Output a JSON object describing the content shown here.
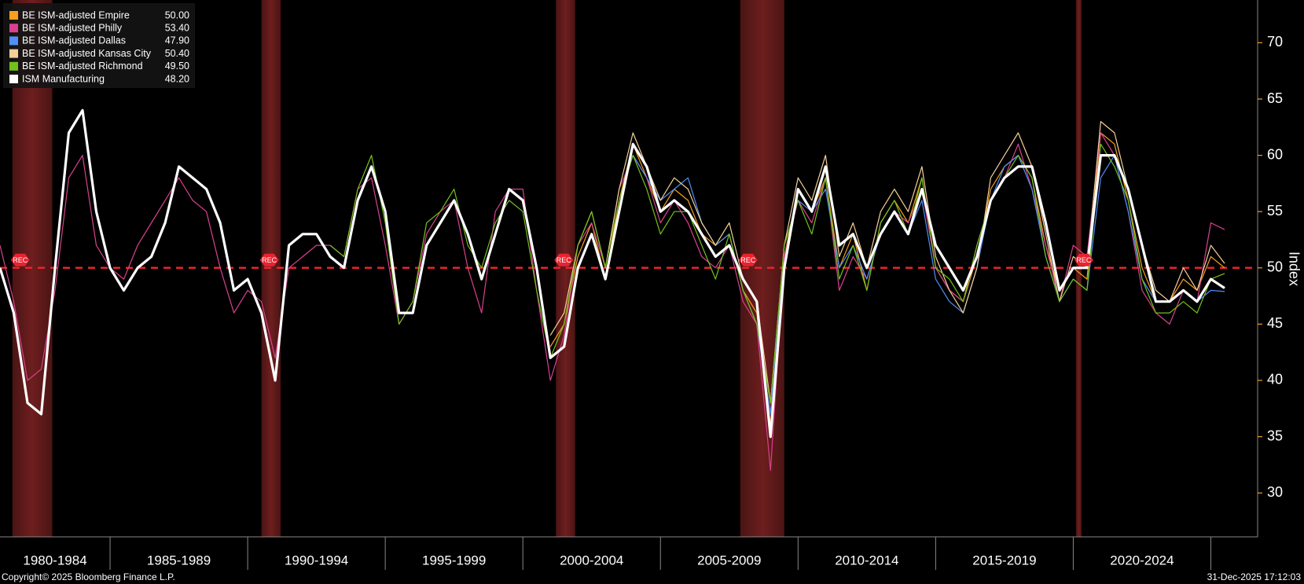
{
  "chart_data": {
    "type": "line",
    "axis_label": "Index",
    "annotation": "REC",
    "footer_left": "Copyright© 2025 Bloomberg Finance L.P.",
    "footer_right": "31-Dec-2025 17:12:03",
    "x": [
      1981,
      1981.5,
      1982,
      1982.5,
      1983,
      1983.5,
      1984,
      1984.5,
      1985,
      1985.5,
      1986,
      1986.5,
      1987,
      1987.5,
      1988,
      1988.5,
      1989,
      1989.5,
      1990,
      1990.5,
      1991,
      1991.5,
      1992,
      1992.5,
      1993,
      1993.5,
      1994,
      1994.5,
      1995,
      1995.5,
      1996,
      1996.5,
      1997,
      1997.5,
      1998,
      1998.5,
      1999,
      1999.5,
      2000,
      2000.5,
      2001,
      2001.5,
      2002,
      2002.5,
      2003,
      2003.5,
      2004,
      2004.5,
      2005,
      2005.5,
      2006,
      2006.5,
      2007,
      2007.5,
      2008,
      2008.5,
      2009,
      2009.5,
      2010,
      2010.5,
      2011,
      2011.5,
      2012,
      2012.5,
      2013,
      2013.5,
      2014,
      2014.5,
      2015,
      2015.5,
      2016,
      2016.5,
      2017,
      2017.5,
      2018,
      2018.5,
      2019,
      2019.5,
      2020,
      2020.5,
      2021,
      2021.5,
      2022,
      2022.5,
      2023,
      2023.5,
      2024,
      2024.5,
      2025,
      2025.5
    ],
    "series": [
      {
        "name": "BE ISM-adjusted Empire",
        "color": "#f7a01d",
        "last_label": "50.00",
        "values": [
          null,
          null,
          null,
          null,
          null,
          null,
          null,
          null,
          null,
          null,
          null,
          null,
          null,
          null,
          null,
          null,
          null,
          null,
          null,
          null,
          null,
          null,
          null,
          null,
          null,
          null,
          null,
          null,
          null,
          null,
          null,
          null,
          null,
          null,
          null,
          null,
          null,
          null,
          null,
          null,
          43,
          45,
          51,
          54,
          49,
          56,
          61,
          58,
          55,
          57,
          56,
          53,
          52,
          53,
          48,
          46,
          36,
          51,
          57,
          55,
          58,
          50,
          53,
          48,
          54,
          56,
          54,
          58,
          50,
          48,
          47,
          51,
          57,
          59,
          60,
          58,
          52,
          48,
          50,
          49,
          62,
          61,
          56,
          50,
          47,
          47,
          49,
          48,
          51,
          50
        ]
      },
      {
        "name": "BE ISM-adjusted Philly",
        "color": "#d9418f",
        "last_label": "53.40",
        "values": [
          52,
          47,
          40,
          41,
          48,
          58,
          60,
          52,
          50,
          49,
          52,
          54,
          56,
          58,
          56,
          55,
          50,
          46,
          48,
          47,
          42,
          50,
          51,
          52,
          52,
          51,
          57,
          58,
          52,
          45,
          47,
          53,
          55,
          56,
          50,
          46,
          55,
          57,
          57,
          48,
          40,
          44,
          52,
          54,
          50,
          57,
          60,
          58,
          54,
          56,
          54,
          51,
          50,
          52,
          47,
          45,
          32,
          51,
          56,
          54,
          58,
          48,
          51,
          49,
          53,
          55,
          54,
          57,
          50,
          48,
          47,
          52,
          56,
          58,
          61,
          57,
          52,
          47,
          52,
          51,
          62,
          60,
          55,
          48,
          46,
          45,
          48,
          47,
          54,
          53.4
        ]
      },
      {
        "name": "BE ISM-adjusted Dallas",
        "color": "#4f8ff7",
        "last_label": "47.90",
        "values": [
          null,
          null,
          null,
          null,
          null,
          null,
          null,
          null,
          null,
          null,
          null,
          null,
          null,
          null,
          null,
          null,
          null,
          null,
          null,
          null,
          null,
          null,
          null,
          null,
          null,
          null,
          null,
          null,
          null,
          null,
          null,
          null,
          null,
          null,
          null,
          null,
          null,
          null,
          null,
          null,
          null,
          null,
          null,
          null,
          null,
          null,
          60,
          58,
          56,
          57,
          58,
          54,
          52,
          53,
          48,
          45,
          37,
          52,
          56,
          55,
          57,
          50,
          52,
          49,
          53,
          55,
          53,
          56,
          49,
          47,
          46,
          50,
          56,
          59,
          60,
          57,
          51,
          47,
          49,
          48,
          58,
          60,
          55,
          49,
          47,
          47,
          48,
          47,
          48,
          47.9
        ]
      },
      {
        "name": "BE ISM-adjusted Kansas City",
        "color": "#f5d09a",
        "last_label": "50.40",
        "values": [
          null,
          null,
          null,
          null,
          null,
          null,
          null,
          null,
          null,
          null,
          null,
          null,
          null,
          null,
          null,
          null,
          null,
          null,
          null,
          null,
          null,
          null,
          null,
          null,
          null,
          null,
          null,
          null,
          null,
          null,
          null,
          null,
          null,
          null,
          null,
          null,
          null,
          null,
          null,
          null,
          44,
          46,
          52,
          55,
          50,
          57,
          62,
          59,
          56,
          58,
          57,
          54,
          52,
          54,
          49,
          47,
          38,
          52,
          58,
          56,
          60,
          51,
          54,
          50,
          55,
          57,
          55,
          59,
          51,
          48,
          46,
          50,
          58,
          60,
          62,
          59,
          53,
          47,
          51,
          50,
          63,
          62,
          57,
          52,
          48,
          47,
          50,
          48,
          52,
          50.4
        ]
      },
      {
        "name": "BE ISM-adjusted Richmond",
        "color": "#73c11c",
        "last_label": "49.50",
        "values": [
          null,
          null,
          null,
          null,
          null,
          null,
          null,
          null,
          null,
          null,
          null,
          null,
          null,
          null,
          null,
          null,
          null,
          null,
          null,
          null,
          null,
          null,
          null,
          null,
          52,
          51,
          57,
          60,
          54,
          45,
          47,
          54,
          55,
          57,
          52,
          50,
          54,
          56,
          55,
          48,
          42,
          45,
          52,
          55,
          50,
          56,
          60,
          57,
          53,
          55,
          55,
          52,
          49,
          53,
          48,
          45,
          38,
          52,
          56,
          53,
          58,
          49,
          52,
          48,
          54,
          56,
          53,
          58,
          50,
          49,
          47,
          52,
          56,
          58,
          60,
          58,
          51,
          47,
          49,
          48,
          61,
          59,
          56,
          49,
          46,
          46,
          47,
          46,
          49,
          49.5
        ]
      },
      {
        "name": "ISM Manufacturing",
        "color": "#ffffff",
        "last_label": "48.20",
        "values": [
          50,
          46,
          38,
          37,
          50,
          62,
          64,
          55,
          50,
          48,
          50,
          51,
          54,
          59,
          58,
          57,
          54,
          48,
          49,
          46,
          40,
          52,
          53,
          53,
          51,
          50,
          56,
          59,
          55,
          46,
          46,
          52,
          54,
          56,
          53,
          49,
          53,
          57,
          56,
          50,
          42,
          43,
          50,
          53,
          49,
          55,
          61,
          59,
          55,
          56,
          55,
          53,
          51,
          52,
          49,
          47,
          35,
          50,
          57,
          55,
          59,
          52,
          53,
          50,
          53,
          55,
          53,
          57,
          52,
          50,
          48,
          51,
          56,
          58,
          59,
          59,
          54,
          48,
          50,
          50,
          60,
          60,
          57,
          52,
          47,
          47,
          48,
          47,
          49,
          48.2
        ]
      }
    ],
    "recessions": [
      [
        1981.45,
        1982.9
      ],
      [
        1990.5,
        1991.2
      ],
      [
        2001.2,
        2001.9
      ],
      [
        2007.9,
        2009.5
      ],
      [
        2020.1,
        2020.3
      ]
    ],
    "reference_line": 50,
    "xlim": [
      1981,
      2026.7
    ],
    "xticks": [
      {
        "value": 1980,
        "label": "1980-1984"
      },
      {
        "value": 1985,
        "label": "1985-1989"
      },
      {
        "value": 1990,
        "label": "1990-1994"
      },
      {
        "value": 1995,
        "label": "1995-1999"
      },
      {
        "value": 2000,
        "label": "2000-2004"
      },
      {
        "value": 2005,
        "label": "2005-2009"
      },
      {
        "value": 2010,
        "label": "2010-2014"
      },
      {
        "value": 2015,
        "label": "2015-2019"
      },
      {
        "value": 2020,
        "label": "2020-2024"
      }
    ],
    "ylim": [
      26.1,
      73.8
    ],
    "yticks": [
      30,
      35,
      40,
      45,
      50,
      55,
      60,
      65,
      70
    ]
  }
}
